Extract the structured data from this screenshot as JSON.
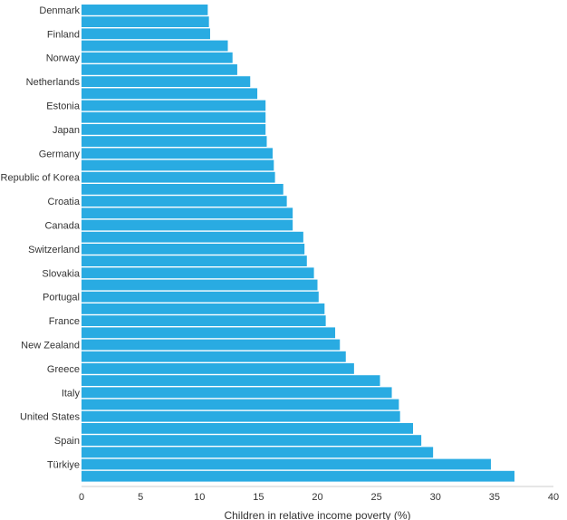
{
  "chart_data": {
    "type": "bar",
    "orientation": "horizontal",
    "title": "",
    "xlabel": "Children in relative income poverty (%)",
    "ylabel": "",
    "xlim": [
      0,
      40
    ],
    "xticks": [
      0,
      5,
      10,
      15,
      20,
      25,
      30,
      35,
      40
    ],
    "grid": false,
    "legend": "none",
    "bar_color": "#29abe2",
    "categories": [
      "Denmark",
      "",
      "Finland",
      "",
      "Norway",
      "",
      "Netherlands",
      "",
      "Estonia",
      "",
      "Japan",
      "",
      "Germany",
      "",
      "Republic of Korea",
      "",
      "Croatia",
      "",
      "Canada",
      "",
      "Switzerland",
      "",
      "Slovakia",
      "",
      "Portugal",
      "",
      "France",
      "",
      "New Zealand",
      "",
      "Greece",
      "",
      "Italy",
      "",
      "United States",
      "",
      "Spain",
      "",
      "Türkiye",
      ""
    ],
    "values": [
      10.7,
      10.8,
      10.9,
      12.4,
      12.8,
      13.2,
      14.3,
      14.9,
      15.6,
      15.6,
      15.6,
      15.7,
      16.2,
      16.3,
      16.4,
      17.1,
      17.4,
      17.9,
      17.9,
      18.8,
      18.9,
      19.1,
      19.7,
      20.0,
      20.1,
      20.6,
      20.7,
      21.5,
      21.9,
      22.4,
      23.1,
      25.3,
      26.3,
      26.9,
      27.0,
      28.1,
      28.8,
      29.8,
      34.7,
      36.7
    ]
  }
}
